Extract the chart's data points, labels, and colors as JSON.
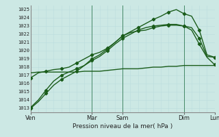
{
  "bg_color": "#cce8e4",
  "grid_color_major": "#99cccc",
  "grid_color_minor": "#bbdddd",
  "line_color": "#1a5c1a",
  "xlabel": "Pression niveau de la mer( hPa )",
  "ylim": [
    1012.5,
    1025.5
  ],
  "yticks": [
    1013,
    1014,
    1015,
    1016,
    1017,
    1018,
    1019,
    1020,
    1021,
    1022,
    1023,
    1024,
    1025
  ],
  "day_labels": [
    "Ven",
    "",
    "Mar",
    "Sam",
    "",
    "Dim",
    "",
    "Lun"
  ],
  "day_tick_labels": [
    "Ven",
    "Mar",
    "Sam",
    "Dim",
    "Lun"
  ],
  "day_tick_positions": [
    0,
    8,
    12,
    20,
    24
  ],
  "vline_positions": [
    0,
    8,
    12,
    20,
    24
  ],
  "lines": [
    {
      "x": [
        0,
        1,
        2,
        3,
        4,
        5,
        6,
        7,
        8,
        9,
        10,
        11,
        12,
        13,
        14,
        15,
        16,
        17,
        18,
        19,
        20,
        21,
        22,
        23,
        24
      ],
      "y": [
        1017.3,
        1017.4,
        1017.4,
        1017.4,
        1017.4,
        1017.4,
        1017.4,
        1017.5,
        1017.5,
        1017.5,
        1017.6,
        1017.7,
        1017.8,
        1017.8,
        1017.8,
        1017.9,
        1018.0,
        1018.0,
        1018.1,
        1018.1,
        1018.2,
        1018.2,
        1018.2,
        1018.2,
        1018.2
      ],
      "marker": false,
      "lw": 1.0
    },
    {
      "x": [
        0,
        1,
        2,
        3,
        4,
        5,
        6,
        7,
        8,
        9,
        10,
        11,
        12,
        13,
        14,
        15,
        16,
        17,
        18,
        19,
        20,
        21,
        22,
        23,
        24
      ],
      "y": [
        1016.7,
        1017.3,
        1017.5,
        1017.7,
        1017.8,
        1018.0,
        1018.5,
        1019.0,
        1019.5,
        1019.8,
        1020.3,
        1021.0,
        1021.8,
        1022.2,
        1022.4,
        1022.5,
        1022.8,
        1023.0,
        1023.1,
        1023.1,
        1023.0,
        1022.8,
        1021.5,
        1019.3,
        1019.2
      ],
      "marker": true,
      "lw": 1.0
    },
    {
      "x": [
        0,
        1,
        2,
        3,
        4,
        5,
        6,
        7,
        8,
        9,
        10,
        11,
        12,
        13,
        14,
        15,
        16,
        17,
        18,
        19,
        20,
        21,
        22,
        23,
        24
      ],
      "y": [
        1013.0,
        1013.8,
        1014.8,
        1015.8,
        1016.5,
        1017.0,
        1017.5,
        1018.2,
        1019.0,
        1019.5,
        1020.2,
        1021.0,
        1021.8,
        1022.3,
        1022.8,
        1023.3,
        1023.8,
        1024.2,
        1024.7,
        1025.0,
        1024.5,
        1024.2,
        1022.5,
        1019.5,
        1019.2
      ],
      "marker": true,
      "lw": 1.0
    },
    {
      "x": [
        0,
        1,
        2,
        3,
        4,
        5,
        6,
        7,
        8,
        9,
        10,
        11,
        12,
        13,
        14,
        15,
        16,
        17,
        18,
        19,
        20,
        21,
        22,
        23,
        24
      ],
      "y": [
        1013.1,
        1014.0,
        1015.2,
        1016.3,
        1017.0,
        1017.4,
        1017.8,
        1018.2,
        1018.8,
        1019.3,
        1020.0,
        1020.8,
        1021.5,
        1022.0,
        1022.5,
        1022.8,
        1023.0,
        1023.1,
        1023.2,
        1023.2,
        1023.0,
        1022.5,
        1020.8,
        1019.2,
        1018.3
      ],
      "marker": true,
      "lw": 1.0
    }
  ]
}
